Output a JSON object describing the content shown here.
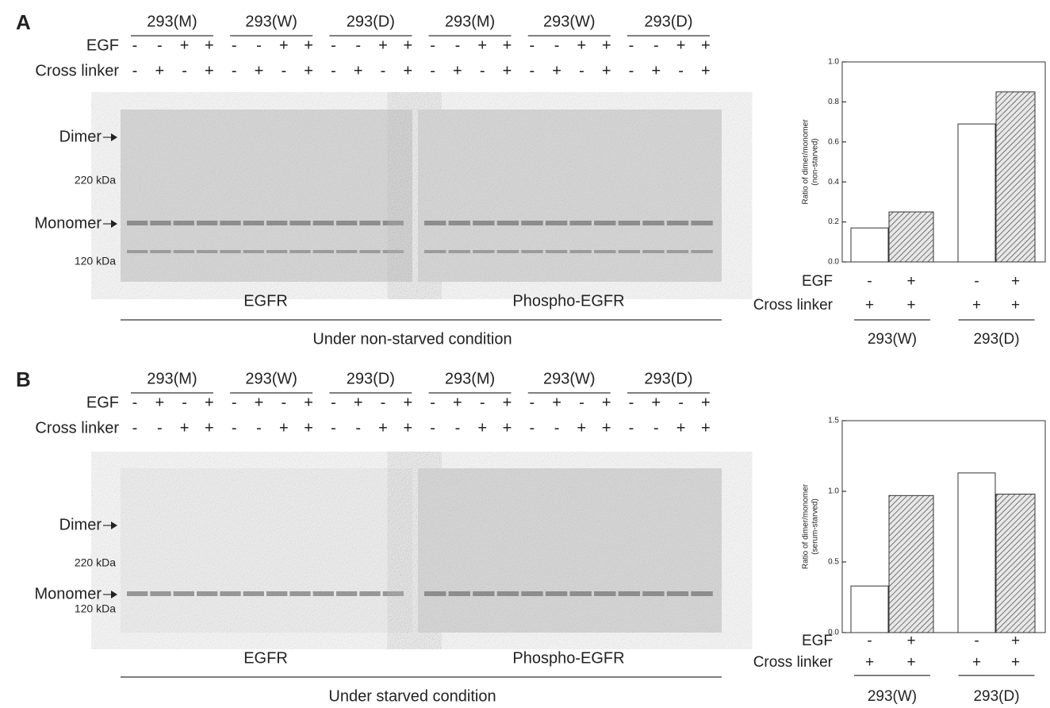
{
  "panels": [
    {
      "letter": "A",
      "groups": [
        "293(M)",
        "293(W)",
        "293(D)",
        "293(M)",
        "293(W)",
        "293(D)"
      ],
      "row_labels": [
        "EGF",
        "Cross linker"
      ],
      "egf": [
        "-",
        "-",
        "+",
        "+",
        "-",
        "-",
        "+",
        "+",
        "-",
        "-",
        "+",
        "+",
        "-",
        "-",
        "+",
        "+",
        "-",
        "-",
        "+",
        "+",
        "-",
        "-",
        "+",
        "+"
      ],
      "cross_linker": [
        "-",
        "+",
        "-",
        "+",
        "-",
        "+",
        "-",
        "+",
        "-",
        "+",
        "-",
        "+",
        "-",
        "+",
        "-",
        "+",
        "-",
        "+",
        "-",
        "+",
        "-",
        "+",
        "-",
        "+"
      ],
      "markers": [
        "Dimer",
        "220 kDa",
        "Monomer",
        "120 kDa"
      ],
      "blots": [
        "EGFR",
        "Phospho-EGFR"
      ],
      "condition": "Under non-starved condition"
    },
    {
      "letter": "B",
      "groups": [
        "293(M)",
        "293(W)",
        "293(D)",
        "293(M)",
        "293(W)",
        "293(D)"
      ],
      "row_labels": [
        "EGF",
        "Cross linker"
      ],
      "egf": [
        "-",
        "+",
        "-",
        "+",
        "-",
        "+",
        "-",
        "+",
        "-",
        "+",
        "-",
        "+",
        "-",
        "+",
        "-",
        "+",
        "-",
        "+",
        "-",
        "+",
        "-",
        "+",
        "-",
        "+"
      ],
      "cross_linker": [
        "-",
        "-",
        "+",
        "+",
        "-",
        "-",
        "+",
        "+",
        "-",
        "-",
        "+",
        "+",
        "-",
        "-",
        "+",
        "+",
        "-",
        "-",
        "+",
        "+",
        "-",
        "-",
        "+",
        "+"
      ],
      "markers": [
        "Dimer",
        "220 kDa",
        "Monomer",
        "120 kDa"
      ],
      "blots": [
        "EGFR",
        "Phospho-EGFR"
      ],
      "condition": "Under starved condition"
    }
  ],
  "chart_data": [
    {
      "type": "bar",
      "ylabel": [
        "Ratio of dimer/monomer",
        "(non-starved)"
      ],
      "values": [
        0.17,
        0.25,
        0.69,
        0.85
      ],
      "fills": [
        "white",
        "hatched",
        "white",
        "hatched"
      ],
      "ylim": [
        0,
        1
      ],
      "yticks": [
        {
          "value": 0,
          "label": "0.0"
        },
        {
          "value": 0.2,
          "label": "0.2"
        },
        {
          "value": 0.4,
          "label": "0.4"
        },
        {
          "value": 0.6,
          "label": "0.6"
        },
        {
          "value": 0.8,
          "label": "0.8"
        },
        {
          "value": 1,
          "label": "1.0"
        }
      ],
      "row_labels": [
        "EGF",
        "Cross linker"
      ],
      "egf": [
        "-",
        "+",
        "-",
        "+"
      ],
      "cross_linker": [
        "+",
        "+",
        "+",
        "+"
      ],
      "groups": [
        "293(W)",
        "293(D)"
      ]
    },
    {
      "type": "bar",
      "ylabel": [
        "Ratio of dimer/monomer",
        "(serum-starved)"
      ],
      "values": [
        0.33,
        0.97,
        1.13,
        0.98
      ],
      "fills": [
        "white",
        "hatched",
        "white",
        "hatched"
      ],
      "ylim": [
        0,
        1.5
      ],
      "yticks": [
        {
          "value": 0,
          "label": "0.0"
        },
        {
          "value": 0.5,
          "label": "0.5"
        },
        {
          "value": 1,
          "label": "1.0"
        },
        {
          "value": 1.5,
          "label": "1.5"
        }
      ],
      "row_labels": [
        "EGF",
        "Cross linker"
      ],
      "egf": [
        "-",
        "+",
        "-",
        "+"
      ],
      "cross_linker": [
        "+",
        "+",
        "+",
        "+"
      ],
      "groups": [
        "293(W)",
        "293(D)"
      ]
    }
  ]
}
